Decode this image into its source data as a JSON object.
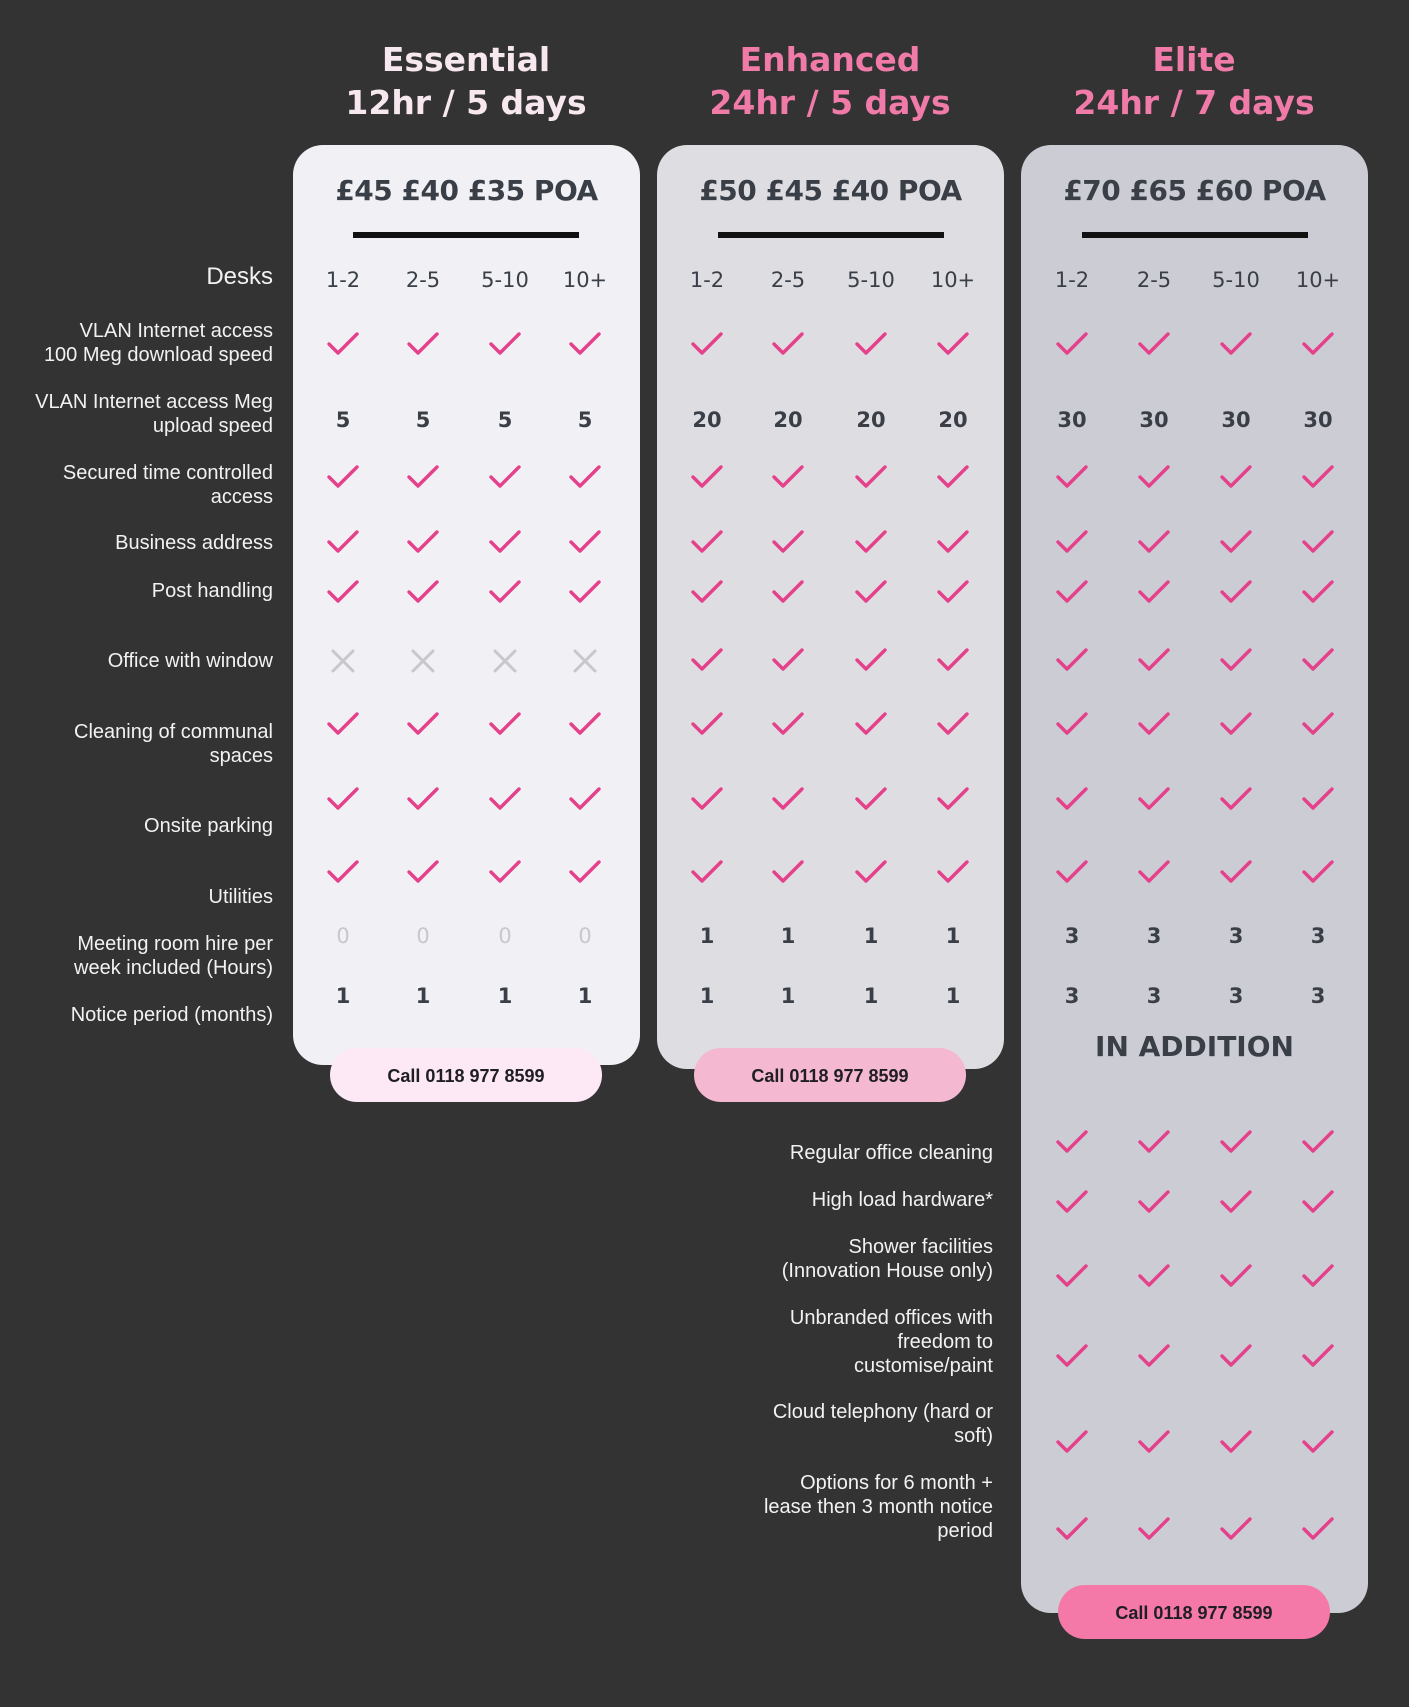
{
  "colors": {
    "background": "#333333",
    "essential_card": "#f1f1f5",
    "enhanced_card": "#dddde2",
    "elite_card": "#ccccd5",
    "check": "#e5408a",
    "cross": "#c8c8cc",
    "essential_title": "#f6e8ee",
    "plan_title_pink": "#f07aa8"
  },
  "labels": {
    "desks": "Desks",
    "vlan_download": [
      "VLAN Internet access",
      "100 Meg download speed"
    ],
    "vlan_upload": [
      "VLAN Internet access Meg",
      "upload speed"
    ],
    "secured": [
      "Secured time controlled",
      "access"
    ],
    "business_address": "Business address",
    "post_handling": "Post handling",
    "office_window": "Office with window",
    "cleaning": [
      "Cleaning of communal",
      "spaces"
    ],
    "parking": "Onsite parking",
    "utilities": "Utilities",
    "meeting": [
      "Meeting room hire per",
      "week included (Hours)"
    ],
    "notice": "Notice period (months)"
  },
  "extra_labels": {
    "regular_cleaning": "Regular office cleaning",
    "hardware": "High load hardware*",
    "shower": [
      "Shower facilities",
      "(Innovation House only)"
    ],
    "unbranded": [
      "Unbranded offices with",
      "freedom to",
      "customise/paint"
    ],
    "telephony": [
      "Cloud telephony (hard or",
      "soft)"
    ],
    "options": [
      "Options for 6 month +",
      "lease then 3 month notice",
      "period"
    ]
  },
  "desk_ranges": [
    "1-2",
    "2-5",
    "5-10",
    "10+"
  ],
  "plans": [
    {
      "name": "Essential",
      "hours": "12hr / 5 days",
      "prices": [
        "£45",
        "£40",
        "£35",
        "POA"
      ],
      "upload": [
        "5",
        "5",
        "5",
        "5"
      ],
      "office_window": "cross",
      "meeting_hours": [
        "0",
        "0",
        "0",
        "0"
      ],
      "notice": [
        "1",
        "1",
        "1",
        "1"
      ],
      "cta": "Call 0118 977 8599",
      "cta_color": "#fde8f5"
    },
    {
      "name": "Enhanced",
      "hours": "24hr / 5 days",
      "prices": [
        "£50",
        "£45",
        "£40",
        "POA"
      ],
      "upload": [
        "20",
        "20",
        "20",
        "20"
      ],
      "office_window": "check",
      "meeting_hours": [
        "1",
        "1",
        "1",
        "1"
      ],
      "notice": [
        "1",
        "1",
        "1",
        "1"
      ],
      "cta": "Call 0118 977 8599",
      "cta_color": "#f4b8d0"
    },
    {
      "name": "Elite",
      "hours": "24hr / 7 days",
      "prices": [
        "£70",
        "£65",
        "£60",
        "POA"
      ],
      "upload": [
        "30",
        "30",
        "30",
        "30"
      ],
      "office_window": "check",
      "meeting_hours": [
        "3",
        "3",
        "3",
        "3"
      ],
      "notice": [
        "3",
        "3",
        "3",
        "3"
      ],
      "cta": "Call 0118 977 8599",
      "cta_color": "#f479a8"
    }
  ],
  "in_addition": "IN ADDITION"
}
